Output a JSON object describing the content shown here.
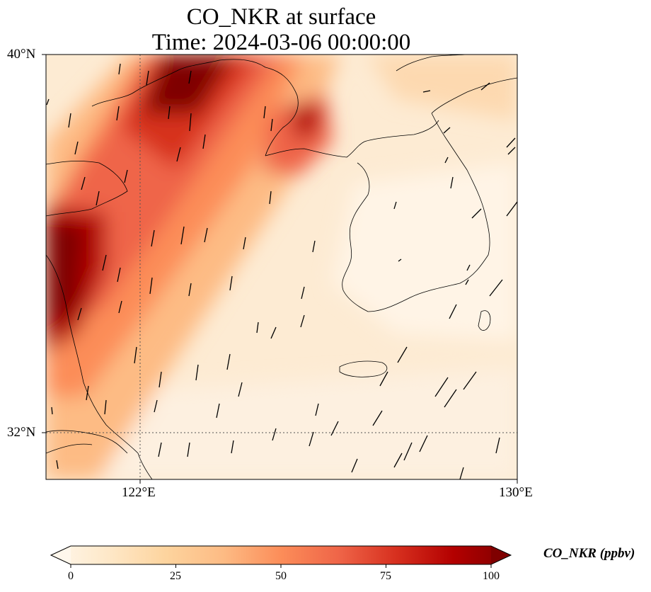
{
  "title": {
    "line1": "CO_NKR at surface",
    "line2": "Time: 2024-03-06 00:00:00"
  },
  "map": {
    "region": "Yellow Sea / Korean Peninsula",
    "lon_range": [
      120,
      130
    ],
    "lat_range": [
      31,
      40
    ],
    "lat_ticks": [
      "40°N",
      "32°N"
    ],
    "lon_ticks": [
      "122°E",
      "130°E"
    ],
    "gridlines": [
      "122°E",
      "32°N"
    ],
    "field": "CO_NKR",
    "vectors": "wind arrows",
    "colormap": "OrRd"
  },
  "colorbar": {
    "label": "CO_NKR (ppbv)",
    "ticks": [
      "0",
      "25",
      "50",
      "75",
      "100"
    ],
    "range": [
      0,
      100
    ],
    "extend": "both",
    "colors": [
      "#fff7ec",
      "#fee8c8",
      "#fdd49e",
      "#fdbb84",
      "#fc8d59",
      "#ef6548",
      "#d7301f",
      "#b30000",
      "#7f0000"
    ]
  }
}
